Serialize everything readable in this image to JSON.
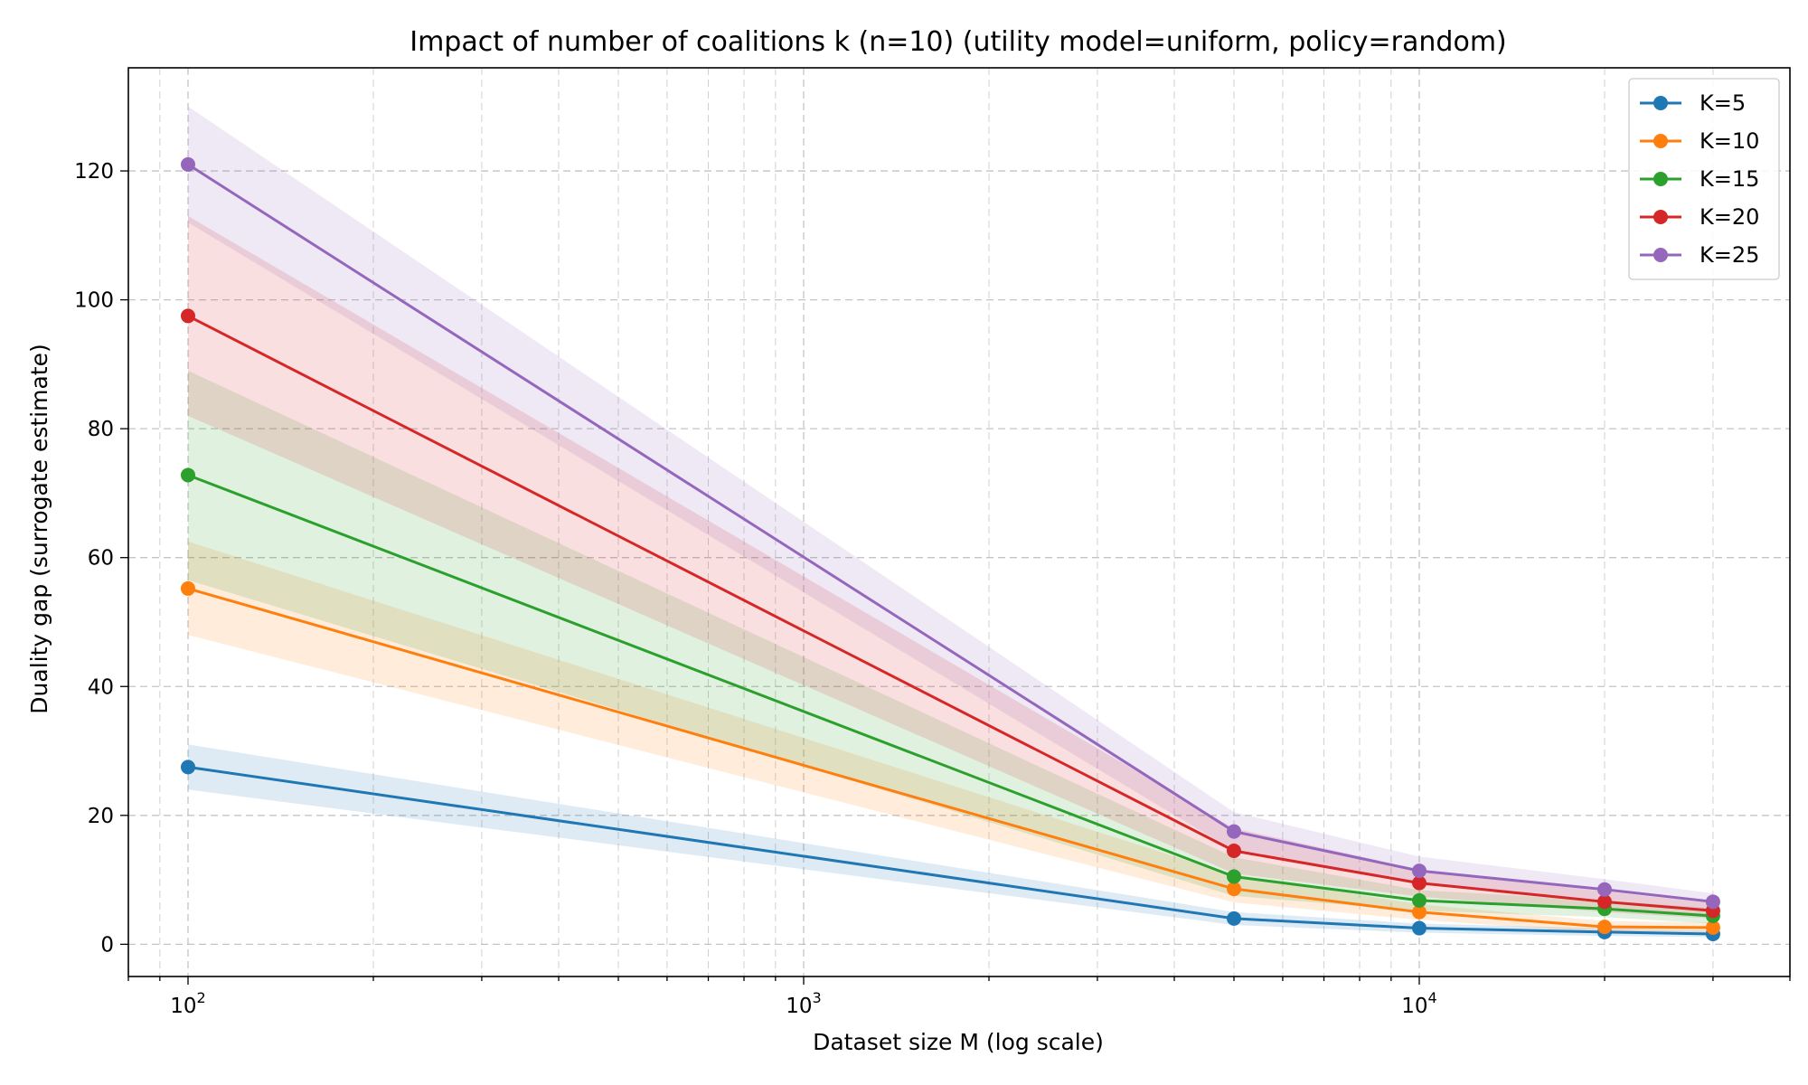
{
  "chart_data": {
    "type": "line",
    "title": "Impact of number of coalitions k (n=10) (utility model=uniform, policy=random)",
    "xlabel": "Dataset size M (log scale)",
    "ylabel": "Duality gap (surrogate estimate)",
    "xscale": "log",
    "xlim": [
      80,
      40000
    ],
    "ylim": [
      -5,
      136
    ],
    "x": [
      100,
      5000,
      10000,
      20000,
      30000
    ],
    "x_ticks": [
      {
        "value": 100,
        "base": "10",
        "exp": "2"
      },
      {
        "value": 1000,
        "base": "10",
        "exp": "3"
      },
      {
        "value": 10000,
        "base": "10",
        "exp": "4"
      }
    ],
    "y_ticks": [
      "0",
      "20",
      "40",
      "60",
      "80",
      "100",
      "120"
    ],
    "grid": true,
    "legend_position": "top-right",
    "series": [
      {
        "name": "K=5",
        "color": "#1f77b4",
        "values": [
          27.5,
          4.0,
          2.5,
          1.9,
          1.6
        ],
        "lower": [
          24.0,
          3.0,
          1.8,
          1.3,
          1.1
        ],
        "upper": [
          31.0,
          5.0,
          3.2,
          2.5,
          2.1
        ]
      },
      {
        "name": "K=10",
        "color": "#ff7f0e",
        "values": [
          55.2,
          8.6,
          5.0,
          2.7,
          2.6
        ],
        "lower": [
          48.0,
          6.5,
          3.8,
          1.8,
          1.8
        ],
        "upper": [
          62.5,
          10.7,
          6.2,
          3.6,
          3.4
        ]
      },
      {
        "name": "K=15",
        "color": "#2ca02c",
        "values": [
          72.8,
          10.5,
          6.8,
          5.5,
          4.4
        ],
        "lower": [
          56.5,
          7.5,
          5.2,
          4.2,
          3.2
        ],
        "upper": [
          89.0,
          13.5,
          8.4,
          6.8,
          5.6
        ]
      },
      {
        "name": "K=20",
        "color": "#d62728",
        "values": [
          97.5,
          14.5,
          9.5,
          6.6,
          5.2
        ],
        "lower": [
          82.0,
          11.0,
          7.4,
          5.0,
          4.0
        ],
        "upper": [
          113.0,
          18.0,
          11.6,
          8.2,
          6.4
        ]
      },
      {
        "name": "K=25",
        "color": "#9467bd",
        "values": [
          121.0,
          17.5,
          11.4,
          8.5,
          6.6
        ],
        "lower": [
          112.0,
          14.5,
          9.2,
          6.9,
          5.3
        ],
        "upper": [
          130.0,
          20.5,
          13.6,
          10.1,
          7.9
        ]
      }
    ]
  }
}
